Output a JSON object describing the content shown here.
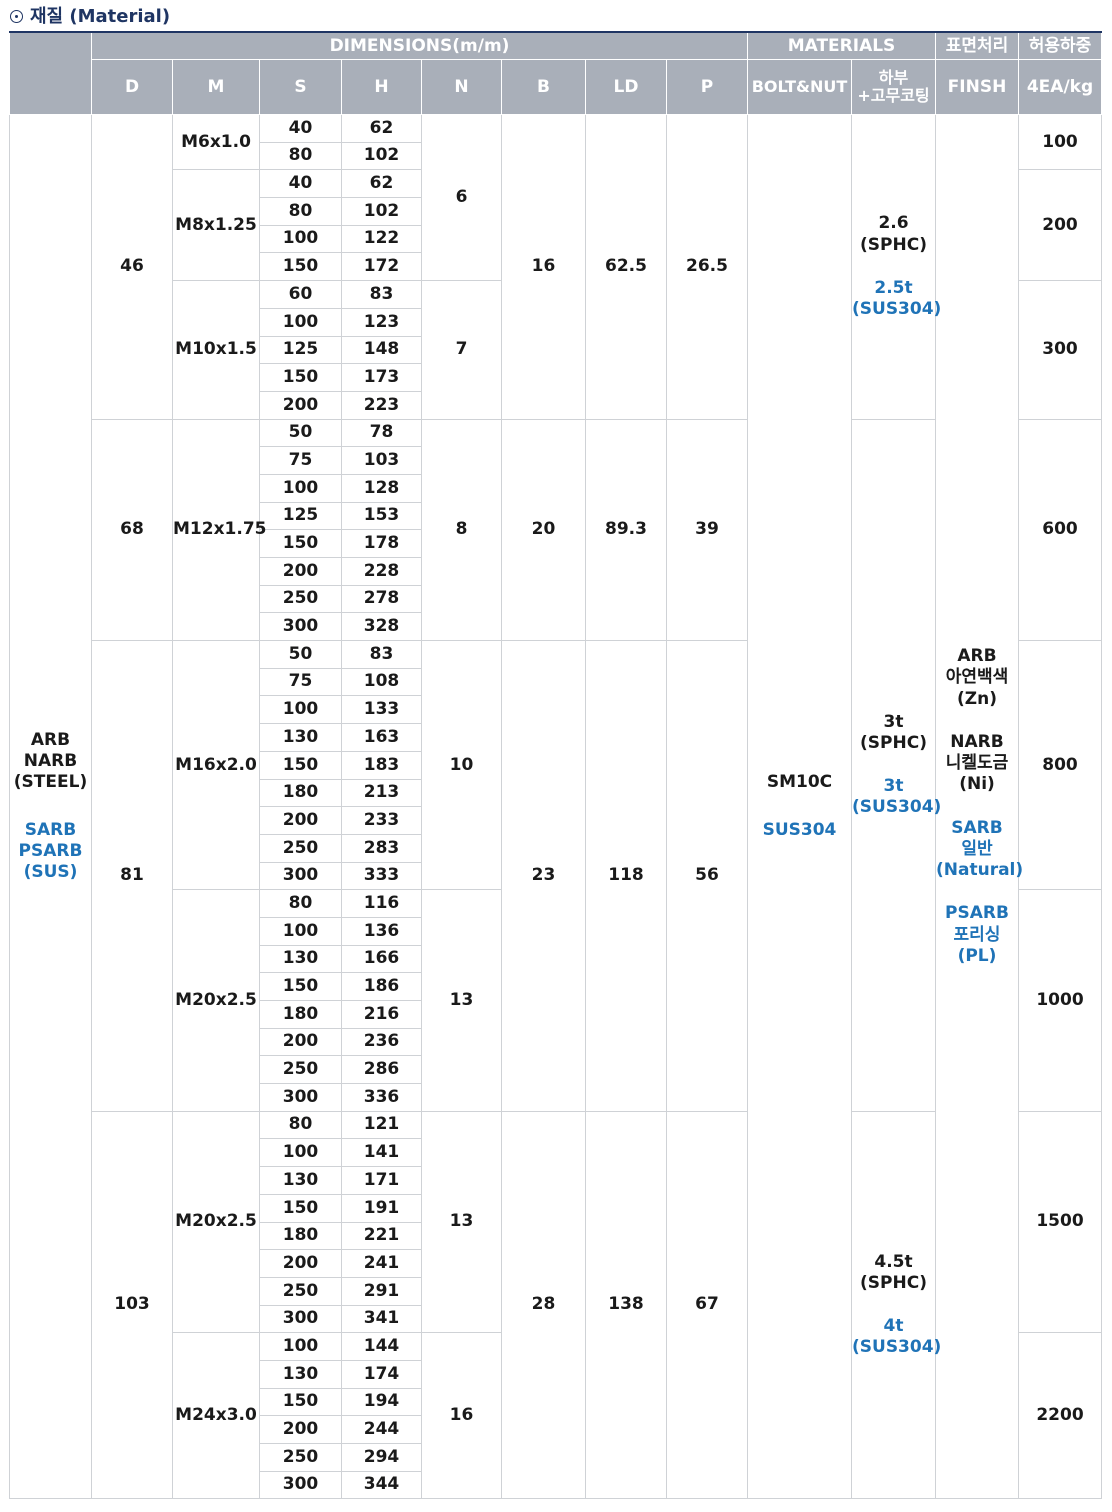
{
  "heading": "재질 (Material)",
  "header": {
    "dimensions": "DIMENSIONS(m/m)",
    "materials": "MATERIALS",
    "surface": "표면처리",
    "load": "허용하중",
    "d": "D",
    "m": "M",
    "s": "S",
    "h": "H",
    "n": "N",
    "b": "B",
    "ld": "LD",
    "p": "P",
    "bolt_nut": "BOLT&NUT",
    "bottom_line1": "하부",
    "bottom_line2": "+고무코팅",
    "finish": "FINSH",
    "load_unit": "4EA/kg"
  },
  "model": {
    "steel_lines": [
      "ARB",
      "NARB",
      "(STEEL)"
    ],
    "sus_lines": [
      "SARB",
      "PSARB",
      "(SUS)"
    ]
  },
  "bolt_nut": {
    "steel": "SM10C",
    "sus": "SUS304"
  },
  "finish": {
    "arb": [
      "ARB",
      "아연백색",
      "(Zn)"
    ],
    "narb": [
      "NARB",
      "니켈도금",
      "(Ni)"
    ],
    "sarb": [
      "SARB",
      "일반",
      "(Natural)"
    ],
    "psarb": [
      "PSARB",
      "포리싱",
      "(PL)"
    ]
  },
  "groups": [
    {
      "d": "46",
      "b": "16",
      "ld": "62.5",
      "p": "26.5",
      "bottom": {
        "steel": [
          "2.6",
          "(SPHC)"
        ],
        "sus": [
          "2.5t",
          "(SUS304)"
        ]
      },
      "threads": [
        {
          "m": "M6x1.0",
          "load": "100",
          "rows": [
            [
              "40",
              "62"
            ],
            [
              "80",
              "102"
            ]
          ]
        },
        {
          "m": "M8x1.25",
          "load": "200",
          "rows": [
            [
              "40",
              "62"
            ],
            [
              "80",
              "102"
            ],
            [
              "100",
              "122"
            ],
            [
              "150",
              "172"
            ]
          ]
        },
        {
          "m": "M10x1.5",
          "load": "300",
          "rows": [
            [
              "60",
              "83"
            ],
            [
              "100",
              "123"
            ],
            [
              "125",
              "148"
            ],
            [
              "150",
              "173"
            ],
            [
              "200",
              "223"
            ]
          ]
        }
      ],
      "n_groups": [
        {
          "n": "6",
          "span": 6
        },
        {
          "n": "7",
          "span": 5
        }
      ]
    },
    {
      "d": "68",
      "b": "20",
      "ld": "89.3",
      "p": "39",
      "threads": [
        {
          "m": "M12x1.75",
          "load": "600",
          "rows": [
            [
              "50",
              "78"
            ],
            [
              "75",
              "103"
            ],
            [
              "100",
              "128"
            ],
            [
              "125",
              "153"
            ],
            [
              "150",
              "178"
            ],
            [
              "200",
              "228"
            ],
            [
              "250",
              "278"
            ],
            [
              "300",
              "328"
            ]
          ]
        }
      ],
      "n_groups": [
        {
          "n": "8",
          "span": 8
        }
      ]
    },
    {
      "d": "81",
      "b": "23",
      "ld": "118",
      "p": "56",
      "threads": [
        {
          "m": "M16x2.0",
          "load": "800",
          "n": "10",
          "rows": [
            [
              "50",
              "83"
            ],
            [
              "75",
              "108"
            ],
            [
              "100",
              "133"
            ],
            [
              "130",
              "163"
            ],
            [
              "150",
              "183"
            ],
            [
              "180",
              "213"
            ],
            [
              "200",
              "233"
            ],
            [
              "250",
              "283"
            ],
            [
              "300",
              "333"
            ]
          ]
        },
        {
          "m": "M20x2.5",
          "load": "1000",
          "n": "13",
          "rows": [
            [
              "80",
              "116"
            ],
            [
              "100",
              "136"
            ],
            [
              "130",
              "166"
            ],
            [
              "150",
              "186"
            ],
            [
              "180",
              "216"
            ],
            [
              "200",
              "236"
            ],
            [
              "250",
              "286"
            ],
            [
              "300",
              "336"
            ]
          ]
        }
      ]
    },
    {
      "d": "103",
      "b": "28",
      "ld": "138",
      "p": "67",
      "threads": [
        {
          "m": "M20x2.5",
          "load": "1500",
          "n": "13",
          "rows": [
            [
              "80",
              "121"
            ],
            [
              "100",
              "141"
            ],
            [
              "130",
              "171"
            ],
            [
              "150",
              "191"
            ],
            [
              "180",
              "221"
            ],
            [
              "200",
              "241"
            ],
            [
              "250",
              "291"
            ],
            [
              "300",
              "341"
            ]
          ]
        },
        {
          "m": "M24x3.0",
          "load": "2200",
          "n": "16",
          "rows": [
            [
              "100",
              "144"
            ],
            [
              "130",
              "174"
            ],
            [
              "150",
              "194"
            ],
            [
              "200",
              "244"
            ],
            [
              "250",
              "294"
            ],
            [
              "300",
              "344"
            ]
          ]
        }
      ]
    }
  ],
  "bottom_mid": {
    "steel": [
      "3t",
      "(SPHC)"
    ],
    "sus": [
      "3t",
      "(SUS304)"
    ]
  },
  "bottom_large": {
    "steel": [
      "4.5t",
      "(SPHC)"
    ],
    "sus": [
      "4t",
      "(SUS304)"
    ]
  }
}
